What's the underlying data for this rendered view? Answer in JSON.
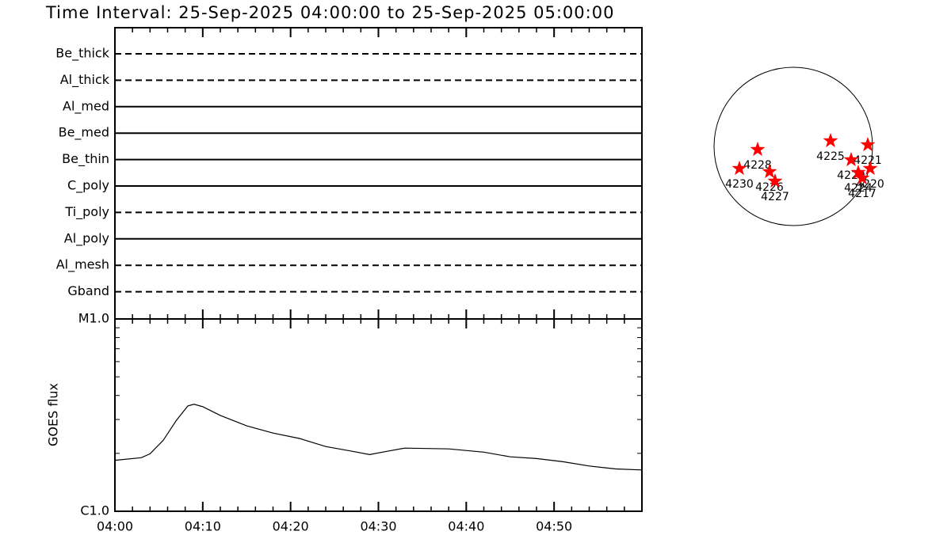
{
  "title": "Time Interval: 25-Sep-2025 04:00:00 to 25-Sep-2025 05:00:00",
  "chart_data": [
    {
      "type": "timeline",
      "categories": [
        "Be_thick",
        "Al_thick",
        "Al_med",
        "Be_med",
        "Be_thin",
        "C_poly",
        "Ti_poly",
        "Al_poly",
        "Al_mesh",
        "Gband"
      ],
      "line_styles": [
        "dashed",
        "dashed",
        "solid",
        "solid",
        "solid",
        "solid",
        "dashed",
        "solid",
        "dashed",
        "dashed"
      ],
      "xlim": [
        0,
        60
      ],
      "color": "#000000"
    },
    {
      "type": "line",
      "ylabel": "GOES flux",
      "x": [
        0,
        3,
        4,
        5.5,
        7,
        8.3,
        9,
        10,
        12,
        15,
        18,
        21,
        24,
        27,
        29,
        31,
        33,
        38,
        42,
        45,
        48,
        51,
        54,
        57,
        60
      ],
      "values": [
        1.84e-06,
        1.9e-06,
        1.99e-06,
        2.34e-06,
        2.97e-06,
        3.53e-06,
        3.6e-06,
        3.5e-06,
        3.15e-06,
        2.78e-06,
        2.55e-06,
        2.39e-06,
        2.17e-06,
        2.05e-06,
        1.97e-06,
        2.05e-06,
        2.13e-06,
        2.11e-06,
        2.03e-06,
        1.92e-06,
        1.88e-06,
        1.81e-06,
        1.72e-06,
        1.66e-06,
        1.64e-06
      ],
      "color": "#000000",
      "log_y": true,
      "xlim": [
        0,
        60
      ],
      "xticks": [
        {
          "value": 0,
          "label": "04:00"
        },
        {
          "value": 10,
          "label": "04:10"
        },
        {
          "value": 20,
          "label": "04:20"
        },
        {
          "value": 30,
          "label": "04:30"
        },
        {
          "value": 40,
          "label": "04:40"
        },
        {
          "value": 50,
          "label": "04:50"
        }
      ],
      "minor_xticks": [
        2,
        4,
        6,
        8,
        12,
        14,
        16,
        18,
        22,
        24,
        26,
        28,
        32,
        34,
        36,
        38,
        42,
        44,
        46,
        48,
        52,
        54,
        56,
        58
      ],
      "ylim": [
        1e-06,
        1e-05
      ],
      "yticks": [
        {
          "value": 1e-06,
          "label": "C1.0"
        },
        {
          "value": 1e-05,
          "label": "M1.0"
        }
      ],
      "minor_yticks": [
        2e-06,
        3e-06,
        4e-06,
        5e-06,
        6e-06,
        7e-06,
        8e-06,
        9e-06
      ]
    },
    {
      "type": "scatter",
      "labels": [
        "4228",
        "4230",
        "4226",
        "4227",
        "4225",
        "4221",
        "4229",
        "4224",
        "4220",
        "4217"
      ],
      "x": [
        -0.45,
        -0.68,
        -0.3,
        -0.23,
        0.47,
        0.94,
        0.73,
        0.82,
        0.97,
        0.87
      ],
      "values": [
        -0.04,
        -0.28,
        -0.32,
        -0.44,
        0.07,
        0.02,
        -0.17,
        -0.33,
        -0.28,
        -0.4
      ],
      "xlim": [
        -1,
        1
      ],
      "ylim": [
        -1,
        1
      ],
      "color": "#ff0000"
    }
  ]
}
